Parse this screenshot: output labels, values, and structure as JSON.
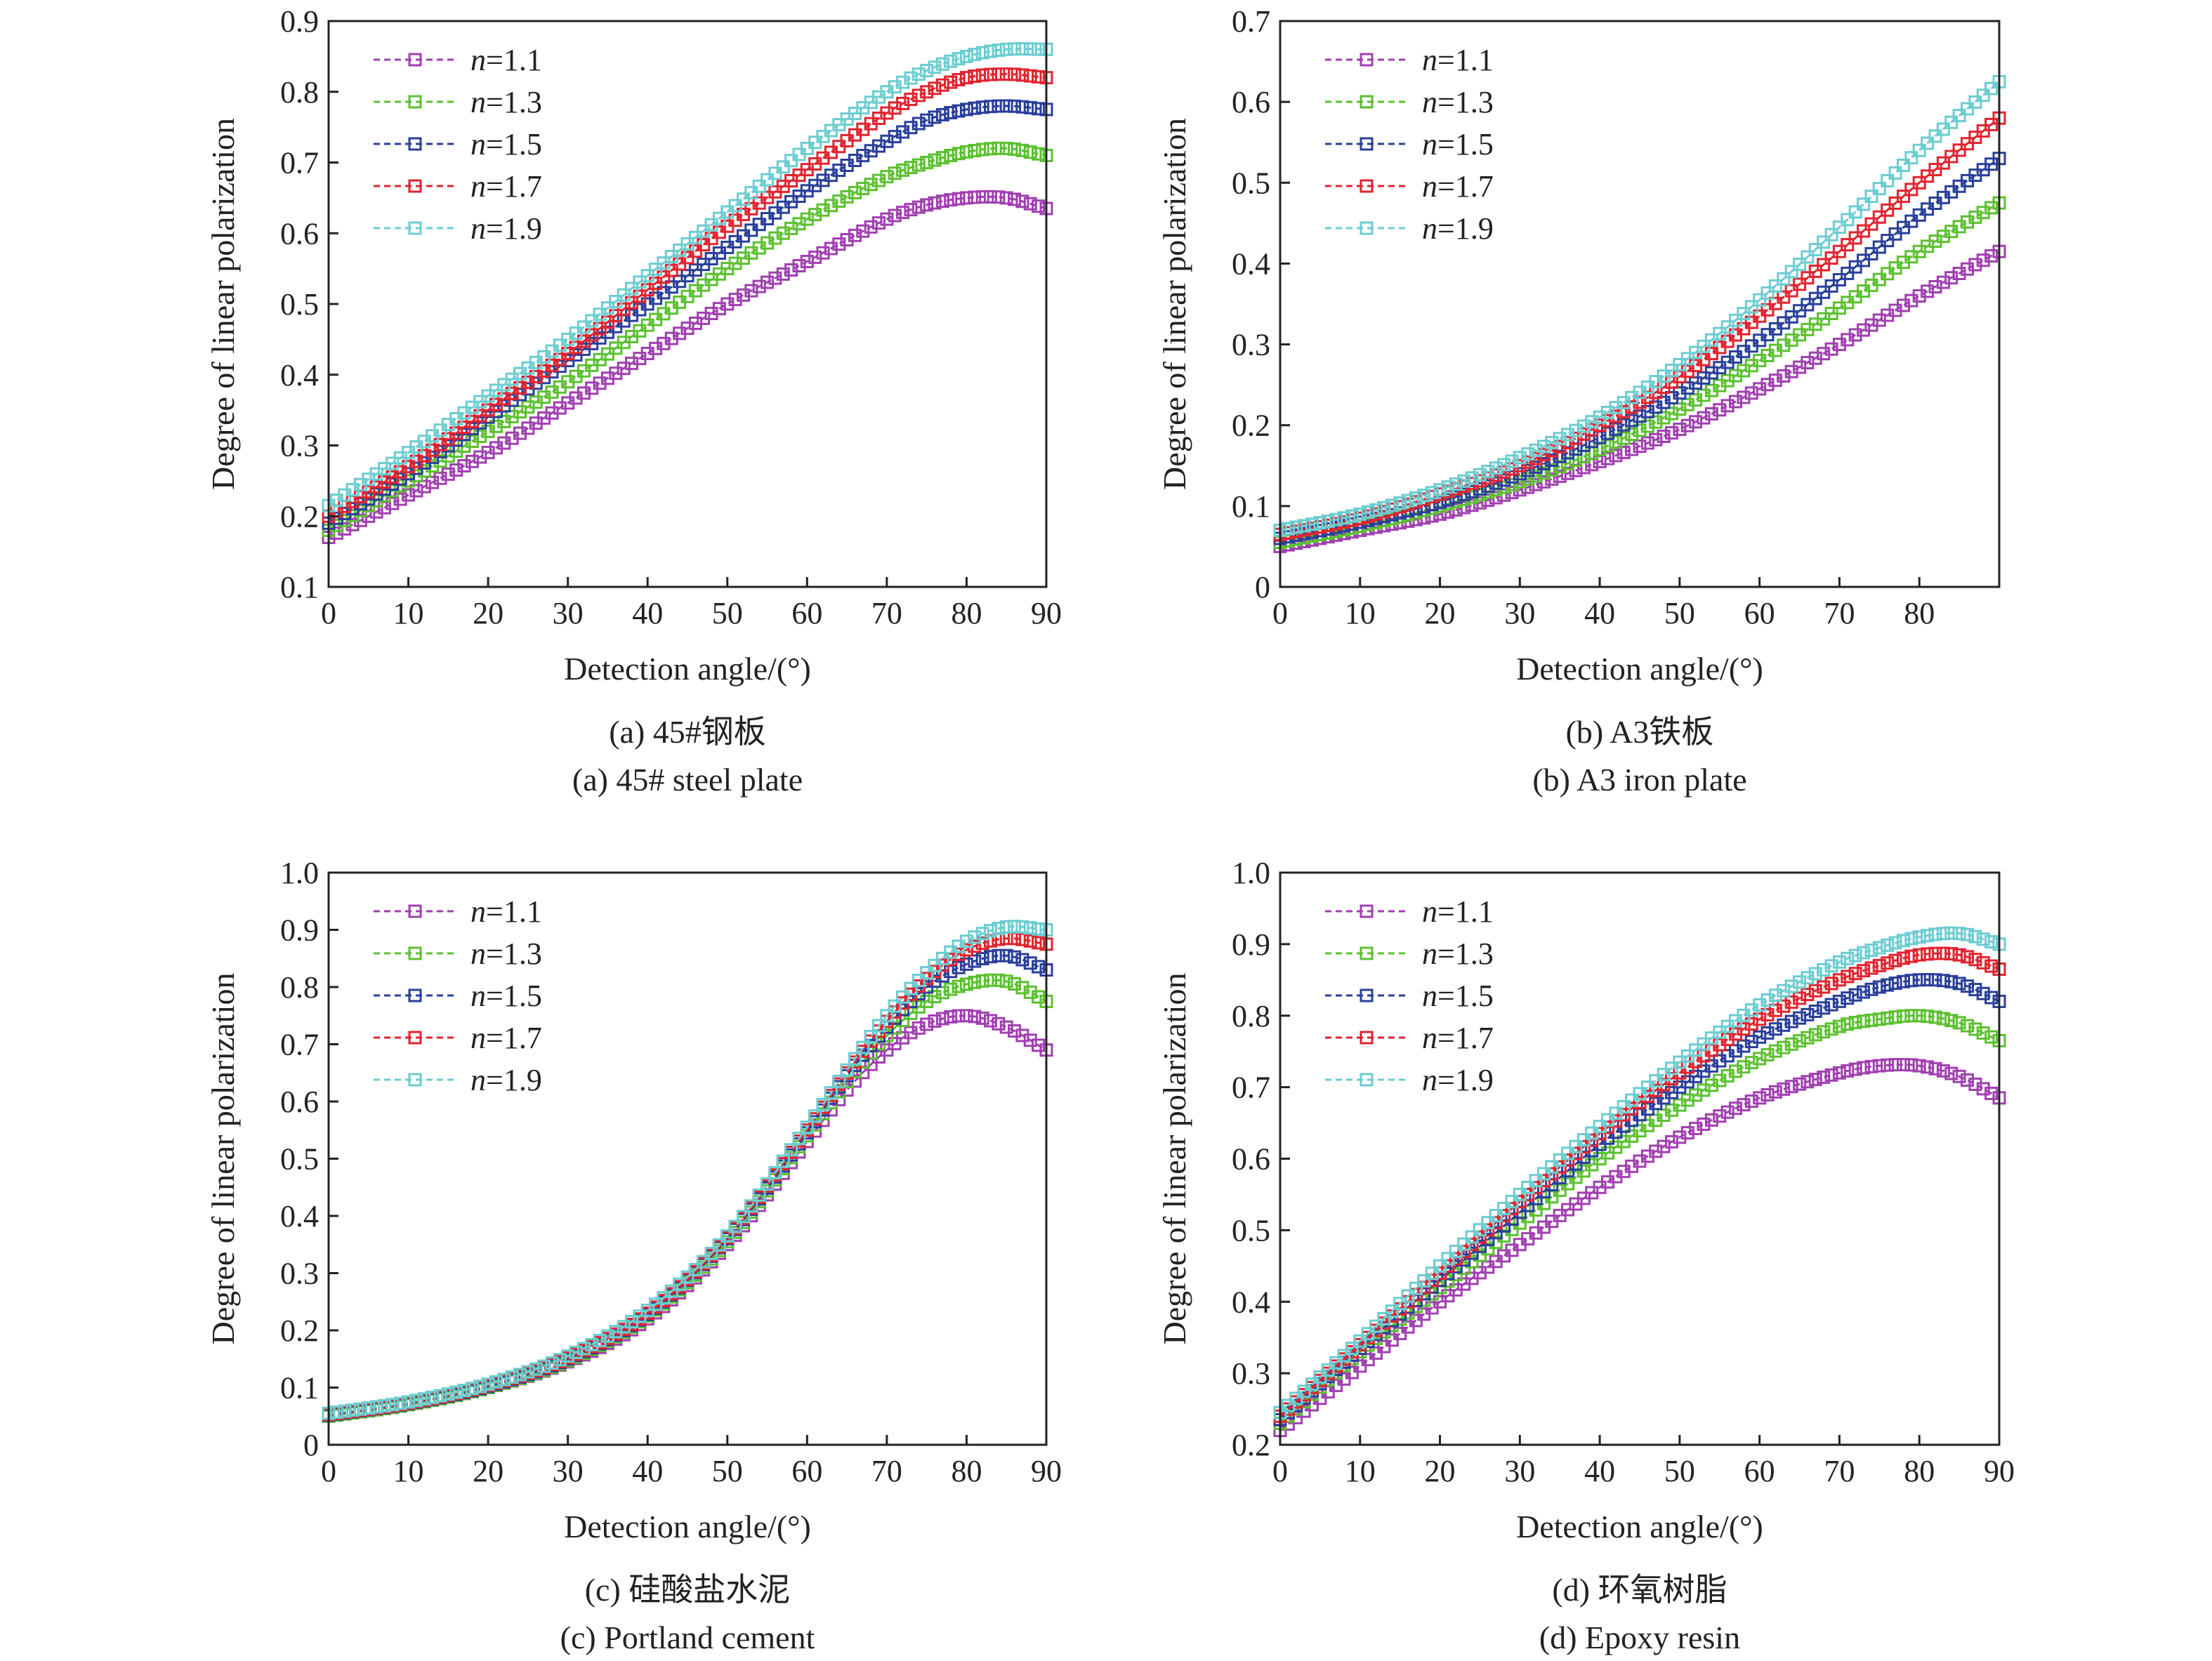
{
  "chart_data": [
    {
      "type": "line",
      "caption_cn": "(a) 45#钢板",
      "caption_en": "(a) 45# steel plate",
      "xlabel": "Detection angle/(°)",
      "ylabel": "Degree of linear polarization",
      "xlim": [
        0,
        90
      ],
      "ylim": [
        0.1,
        0.9
      ],
      "xticks": [
        "0",
        "10",
        "20",
        "30",
        "40",
        "50",
        "60",
        "70",
        "80",
        "90"
      ],
      "yticks": [
        "0.1",
        "0.2",
        "0.3",
        "0.4",
        "0.5",
        "0.6",
        "0.7",
        "0.8",
        "0.9"
      ],
      "legend_position": "top-left",
      "x": [
        0,
        10,
        20,
        30,
        40,
        50,
        60,
        70,
        75,
        80,
        85,
        90
      ],
      "series": [
        {
          "name": "n=1.1",
          "color": "#a040b0",
          "values": [
            0.17,
            0.23,
            0.29,
            0.36,
            0.43,
            0.5,
            0.56,
            0.62,
            0.64,
            0.65,
            0.65,
            0.635
          ]
        },
        {
          "name": "n=1.3",
          "color": "#5cc030",
          "values": [
            0.18,
            0.25,
            0.32,
            0.39,
            0.47,
            0.55,
            0.62,
            0.68,
            0.7,
            0.715,
            0.72,
            0.71
          ]
        },
        {
          "name": "n=1.5",
          "color": "#2a3f9a",
          "values": [
            0.19,
            0.26,
            0.34,
            0.42,
            0.5,
            0.58,
            0.66,
            0.73,
            0.76,
            0.775,
            0.78,
            0.775
          ]
        },
        {
          "name": "n=1.7",
          "color": "#e02430",
          "values": [
            0.2,
            0.27,
            0.35,
            0.43,
            0.52,
            0.61,
            0.69,
            0.77,
            0.8,
            0.82,
            0.825,
            0.82
          ]
        },
        {
          "name": "n=1.9",
          "color": "#6ccdd0",
          "values": [
            0.215,
            0.29,
            0.37,
            0.45,
            0.54,
            0.63,
            0.72,
            0.8,
            0.83,
            0.85,
            0.86,
            0.86
          ]
        }
      ]
    },
    {
      "type": "line",
      "caption_cn": "(b) A3铁板",
      "caption_en": "(b) A3 iron plate",
      "xlabel": "Detection angle/(°)",
      "ylabel": "Degree of linear polarization",
      "xlim": [
        0,
        90
      ],
      "ylim": [
        0,
        0.7
      ],
      "xticks": [
        "0",
        "10",
        "20",
        "30",
        "40",
        "50",
        "60",
        "70",
        "80"
      ],
      "yticks": [
        "0",
        "0.1",
        "0.2",
        "0.3",
        "0.4",
        "0.5",
        "0.6",
        "0.7"
      ],
      "legend_position": "top-left",
      "x": [
        0,
        10,
        20,
        30,
        40,
        50,
        60,
        70,
        80,
        90
      ],
      "series": [
        {
          "name": "n=1.1",
          "color": "#a040b0",
          "values": [
            0.05,
            0.07,
            0.09,
            0.12,
            0.155,
            0.195,
            0.245,
            0.3,
            0.36,
            0.415
          ]
        },
        {
          "name": "n=1.3",
          "color": "#5cc030",
          "values": [
            0.055,
            0.075,
            0.1,
            0.13,
            0.17,
            0.22,
            0.28,
            0.345,
            0.415,
            0.475
          ]
        },
        {
          "name": "n=1.5",
          "color": "#2a3f9a",
          "values": [
            0.06,
            0.08,
            0.105,
            0.14,
            0.185,
            0.24,
            0.305,
            0.38,
            0.46,
            0.53
          ]
        },
        {
          "name": "n=1.7",
          "color": "#e02430",
          "values": [
            0.065,
            0.085,
            0.115,
            0.15,
            0.2,
            0.26,
            0.335,
            0.415,
            0.5,
            0.58
          ]
        },
        {
          "name": "n=1.9",
          "color": "#6ccdd0",
          "values": [
            0.07,
            0.09,
            0.12,
            0.16,
            0.21,
            0.275,
            0.355,
            0.445,
            0.54,
            0.625
          ]
        }
      ]
    },
    {
      "type": "line",
      "caption_cn": "(c) 硅酸盐水泥",
      "caption_en": "(c) Portland cement",
      "xlabel": "Detection angle/(°)",
      "ylabel": "Degree of linear polarization",
      "xlim": [
        0,
        90
      ],
      "ylim": [
        0,
        1.0
      ],
      "xticks": [
        "0",
        "10",
        "20",
        "30",
        "40",
        "50",
        "60",
        "70",
        "80",
        "90"
      ],
      "yticks": [
        "0",
        "0.1",
        "0.2",
        "0.3",
        "0.4",
        "0.5",
        "0.6",
        "0.7",
        "0.8",
        "0.9",
        "1.0"
      ],
      "legend_position": "top-left",
      "x": [
        0,
        10,
        20,
        30,
        40,
        50,
        60,
        65,
        70,
        75,
        80,
        85,
        90
      ],
      "series": [
        {
          "name": "n=1.1",
          "color": "#a040b0",
          "values": [
            0.05,
            0.07,
            0.1,
            0.145,
            0.22,
            0.35,
            0.53,
            0.62,
            0.69,
            0.735,
            0.75,
            0.73,
            0.69
          ]
        },
        {
          "name": "n=1.3",
          "color": "#5cc030",
          "values": [
            0.05,
            0.07,
            0.1,
            0.147,
            0.225,
            0.355,
            0.54,
            0.635,
            0.715,
            0.775,
            0.805,
            0.81,
            0.775
          ]
        },
        {
          "name": "n=1.5",
          "color": "#2a3f9a",
          "values": [
            0.052,
            0.072,
            0.102,
            0.15,
            0.228,
            0.36,
            0.545,
            0.645,
            0.73,
            0.8,
            0.84,
            0.855,
            0.83
          ]
        },
        {
          "name": "n=1.7",
          "color": "#e02430",
          "values": [
            0.053,
            0.073,
            0.104,
            0.152,
            0.23,
            0.362,
            0.55,
            0.65,
            0.74,
            0.815,
            0.865,
            0.885,
            0.875
          ]
        },
        {
          "name": "n=1.9",
          "color": "#6ccdd0",
          "values": [
            0.055,
            0.075,
            0.106,
            0.155,
            0.235,
            0.365,
            0.555,
            0.655,
            0.75,
            0.825,
            0.88,
            0.905,
            0.9
          ]
        }
      ]
    },
    {
      "type": "line",
      "caption_cn": "(d) 环氧树脂",
      "caption_en": "(d) Epoxy resin",
      "xlabel": "Detection angle/(°)",
      "ylabel": "Degree of linear polarization",
      "xlim": [
        0,
        90
      ],
      "ylim": [
        0.2,
        1.0
      ],
      "xticks": [
        "0",
        "10",
        "20",
        "30",
        "40",
        "50",
        "60",
        "70",
        "80",
        "90"
      ],
      "yticks": [
        "0.2",
        "0.3",
        "0.4",
        "0.5",
        "0.6",
        "0.7",
        "0.8",
        "0.9",
        "1.0"
      ],
      "legend_position": "top-left",
      "x": [
        0,
        10,
        20,
        30,
        40,
        50,
        60,
        70,
        75,
        80,
        85,
        90
      ],
      "series": [
        {
          "name": "n=1.1",
          "color": "#a040b0",
          "values": [
            0.22,
            0.31,
            0.4,
            0.48,
            0.56,
            0.63,
            0.685,
            0.72,
            0.73,
            0.73,
            0.715,
            0.685
          ]
        },
        {
          "name": "n=1.3",
          "color": "#5cc030",
          "values": [
            0.23,
            0.33,
            0.42,
            0.51,
            0.6,
            0.675,
            0.74,
            0.785,
            0.795,
            0.8,
            0.79,
            0.765
          ]
        },
        {
          "name": "n=1.5",
          "color": "#2a3f9a",
          "values": [
            0.235,
            0.335,
            0.43,
            0.525,
            0.62,
            0.7,
            0.77,
            0.82,
            0.84,
            0.85,
            0.845,
            0.82
          ]
        },
        {
          "name": "n=1.7",
          "color": "#e02430",
          "values": [
            0.24,
            0.34,
            0.44,
            0.54,
            0.635,
            0.72,
            0.795,
            0.85,
            0.87,
            0.885,
            0.885,
            0.865
          ]
        },
        {
          "name": "n=1.9",
          "color": "#6ccdd0",
          "values": [
            0.245,
            0.345,
            0.45,
            0.55,
            0.645,
            0.735,
            0.815,
            0.875,
            0.895,
            0.91,
            0.915,
            0.9
          ]
        }
      ]
    }
  ]
}
